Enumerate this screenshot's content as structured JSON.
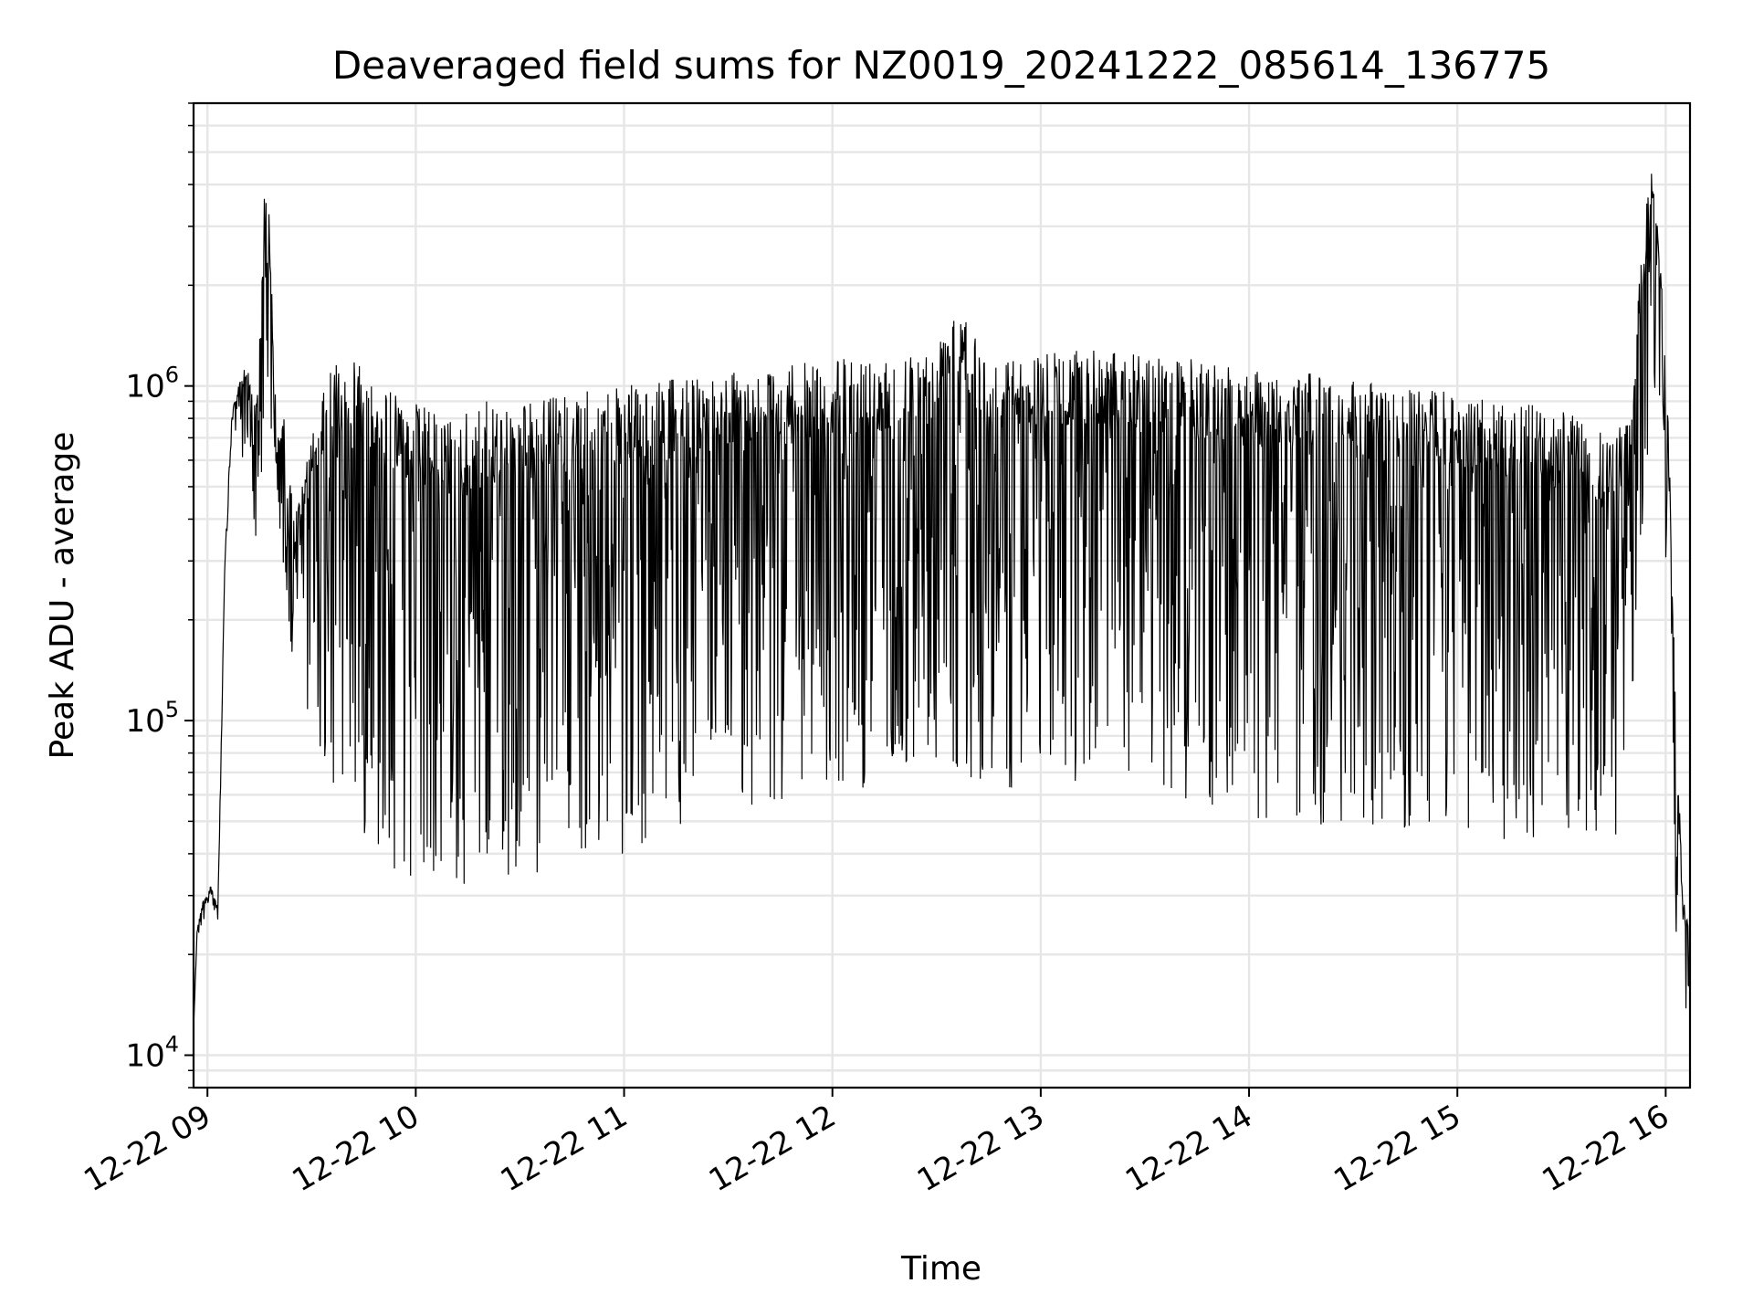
{
  "chart_data": {
    "type": "line",
    "title": "Deaveraged field sums for NZ0019_20241222_085614_136775",
    "xlabel": "Time",
    "ylabel": "Peak ADU - average",
    "yscale": "log",
    "ylim": [
      8000,
      7000000
    ],
    "xlim": [
      "2024-12-22 08:56",
      "2024-12-22 16:07"
    ],
    "x_ticks": [
      "12-22 09",
      "12-22 10",
      "12-22 11",
      "12-22 12",
      "12-22 13",
      "12-22 14",
      "12-22 15",
      "12-22 16"
    ],
    "y_ticks": [
      {
        "base": "10",
        "exp": "4",
        "value": 10000
      },
      {
        "base": "10",
        "exp": "5",
        "value": 100000
      },
      {
        "base": "10",
        "exp": "6",
        "value": 1000000
      }
    ],
    "grid": true,
    "line_color": "#000000",
    "series": [
      {
        "x": [
          "2024-12-22 08:56",
          "2024-12-22 08:57",
          "2024-12-22 08:59",
          "2024-12-22 09:01",
          "2024-12-22 09:03",
          "2024-12-22 09:05",
          "2024-12-22 09:07",
          "2024-12-22 09:09",
          "2024-12-22 09:11",
          "2024-12-22 09:14",
          "2024-12-22 09:17",
          "2024-12-22 09:20",
          "2024-12-22 09:22",
          "2024-12-22 09:25",
          "2024-12-22 09:30",
          "2024-12-22 09:35",
          "2024-12-22 09:42",
          "2024-12-22 09:50",
          "2024-12-22 10:00",
          "2024-12-22 10:10",
          "2024-12-22 10:20",
          "2024-12-22 10:30",
          "2024-12-22 10:45",
          "2024-12-22 11:00",
          "2024-12-22 11:15",
          "2024-12-22 11:30",
          "2024-12-22 11:45",
          "2024-12-22 12:00",
          "2024-12-22 12:15",
          "2024-12-22 12:30",
          "2024-12-22 12:35",
          "2024-12-22 12:45",
          "2024-12-22 13:00",
          "2024-12-22 13:15",
          "2024-12-22 13:30",
          "2024-12-22 13:45",
          "2024-12-22 14:00",
          "2024-12-22 14:15",
          "2024-12-22 14:30",
          "2024-12-22 14:45",
          "2024-12-22 15:00",
          "2024-12-22 15:15",
          "2024-12-22 15:30",
          "2024-12-22 15:45",
          "2024-12-22 15:50",
          "2024-12-22 15:53",
          "2024-12-22 15:56",
          "2024-12-22 15:59",
          "2024-12-22 16:01",
          "2024-12-22 16:03",
          "2024-12-22 16:05",
          "2024-12-22 16:07"
        ],
        "y": [
          12000,
          24000,
          30000,
          32000,
          28000,
          300000,
          850000,
          1000000,
          1200000,
          900000,
          5500000,
          700000,
          800000,
          400000,
          700000,
          1100000,
          1300000,
          1000000,
          900000,
          800000,
          900000,
          900000,
          950000,
          1000000,
          1050000,
          1100000,
          1150000,
          1200000,
          1250000,
          1300000,
          2100000,
          1200000,
          1250000,
          1300000,
          1250000,
          1200000,
          1150000,
          1100000,
          1050000,
          1000000,
          950000,
          900000,
          850000,
          700000,
          900000,
          2500000,
          4800000,
          2000000,
          700000,
          100000,
          30000,
          25000
        ],
        "min": [
          12000,
          22000,
          25000,
          25000,
          25000,
          250000,
          700000,
          700000,
          500000,
          350000,
          450000,
          400000,
          250000,
          120000,
          100000,
          60000,
          50000,
          40000,
          30000,
          30000,
          30000,
          35000,
          35000,
          40000,
          45000,
          50000,
          55000,
          60000,
          65000,
          70000,
          70000,
          65000,
          60000,
          65000,
          60000,
          55000,
          50000,
          48000,
          48000,
          46000,
          45000,
          44000,
          42000,
          40000,
          100000,
          300000,
          1000000,
          700000,
          100000,
          20000,
          15000,
          12000
        ]
      }
    ]
  }
}
